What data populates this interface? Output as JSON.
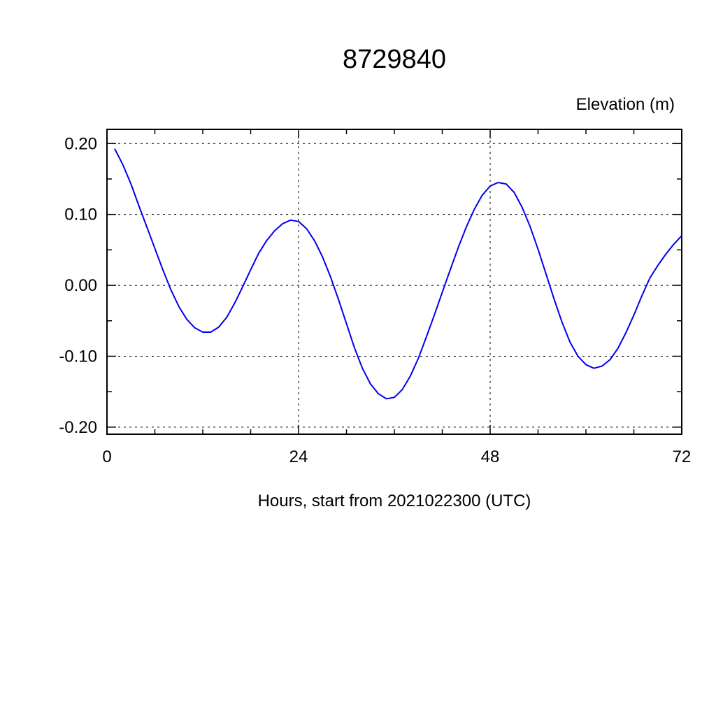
{
  "chart_data": {
    "type": "line",
    "title": "8729840",
    "ylabel": "Elevation (m)",
    "xlabel": "Hours, start from 2021022300 (UTC)",
    "xlim": [
      0,
      72
    ],
    "ylim": [
      -0.21,
      0.22
    ],
    "xticks": [
      0,
      24,
      48,
      72
    ],
    "xminor_step": 6,
    "yticks": [
      -0.2,
      -0.1,
      0,
      0.1,
      0.2
    ],
    "yminor_step": 0.05,
    "xgridlines": [
      24,
      48
    ],
    "grid_style": "dashed",
    "legend": "none",
    "line_color": "#0000ee",
    "series": [
      {
        "name": "Elevation",
        "x": [
          1,
          2,
          3,
          4,
          5,
          6,
          7,
          8,
          9,
          10,
          11,
          12,
          13,
          14,
          15,
          16,
          17,
          18,
          19,
          20,
          21,
          22,
          23,
          24,
          25,
          26,
          27,
          28,
          29,
          30,
          31,
          32,
          33,
          34,
          35,
          36,
          37,
          38,
          39,
          40,
          41,
          42,
          43,
          44,
          45,
          46,
          47,
          48,
          49,
          50,
          51,
          52,
          53,
          54,
          55,
          56,
          57,
          58,
          59,
          60,
          61,
          62,
          63,
          64,
          65,
          66,
          67,
          68,
          69,
          70,
          71,
          72
        ],
        "y": [
          0.192,
          0.17,
          0.143,
          0.112,
          0.082,
          0.052,
          0.022,
          -0.006,
          -0.03,
          -0.048,
          -0.06,
          -0.066,
          -0.066,
          -0.059,
          -0.045,
          -0.025,
          -0.002,
          0.022,
          0.045,
          0.063,
          0.077,
          0.087,
          0.092,
          0.09,
          0.08,
          0.063,
          0.04,
          0.012,
          -0.02,
          -0.054,
          -0.088,
          -0.117,
          -0.139,
          -0.153,
          -0.16,
          -0.158,
          -0.147,
          -0.128,
          -0.103,
          -0.073,
          -0.042,
          -0.01,
          0.022,
          0.053,
          0.082,
          0.107,
          0.127,
          0.14,
          0.145,
          0.143,
          0.131,
          0.11,
          0.083,
          0.051,
          0.016,
          -0.019,
          -0.052,
          -0.08,
          -0.1,
          -0.112,
          -0.117,
          -0.114,
          -0.105,
          -0.089,
          -0.067,
          -0.042,
          -0.015,
          0.01,
          0.028,
          0.044,
          0.058,
          0.07
        ]
      }
    ]
  }
}
